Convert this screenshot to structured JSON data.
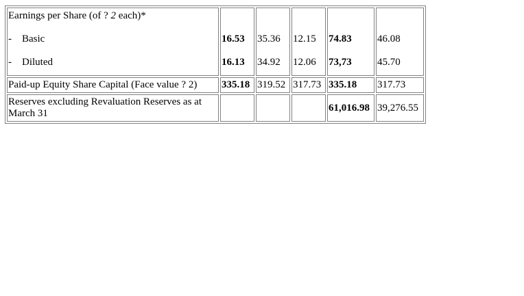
{
  "table": {
    "eps": {
      "heading_prefix": "Earnings per Share (of ? ",
      "heading_face": "2",
      "heading_suffix": " each)*",
      "basic_label": "Basic",
      "diluted_label": "Diluted",
      "dash": "-",
      "basic": [
        "16.53",
        "35.36",
        "12.15",
        "74.83",
        "46.08"
      ],
      "diluted": [
        "16.13",
        "34.92",
        "12.06",
        "73,73",
        "45.70"
      ]
    },
    "capital": {
      "label": "Paid-up Equity Share Capital (Face value ? 2)",
      "values": [
        "335.18",
        "319.52",
        "317.73",
        "335.18",
        "317.73"
      ]
    },
    "reserves": {
      "label_line1": "Reserves excluding Revaluation Reserves as at",
      "label_line2": "March 31",
      "values": [
        "",
        "",
        "",
        "61,016.98",
        "39,276.55"
      ]
    }
  }
}
